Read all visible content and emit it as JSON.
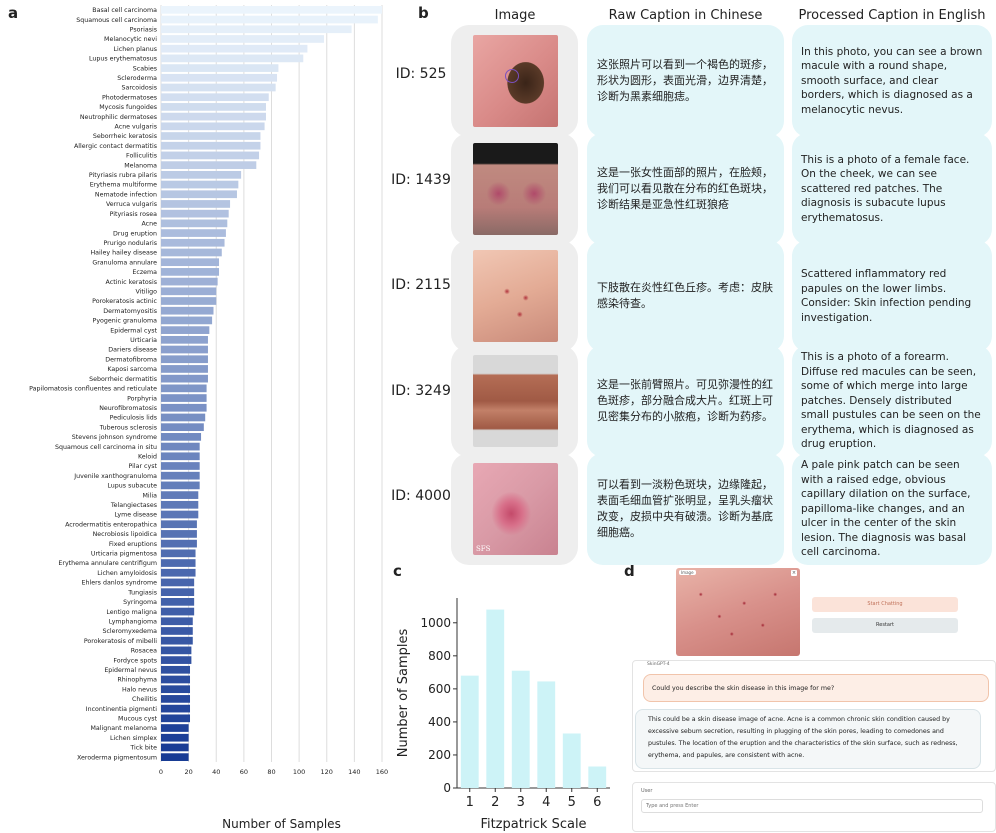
{
  "panels": {
    "a": "a",
    "b": "b",
    "c": "c",
    "d": "d"
  },
  "panel_b": {
    "headers": {
      "image": "Image",
      "raw": "Raw Caption in Chinese",
      "processed": "Processed Caption in English"
    },
    "rows": [
      {
        "id": "ID: 525",
        "cn": "这张照片可以看到一个褐色的斑疹，形状为圆形，表面光滑，边界清楚，诊断为黑素细胞痣。",
        "en": "In this photo, you can see a brown macule with a round shape, smooth surface, and clear borders, which is diagnosed as a melanocytic nevus."
      },
      {
        "id": "ID: 1439",
        "cn": "这是一张女性面部的照片，在脸颊，我们可以看见散在分布的红色斑块，诊断结果是亚急性红斑狼疮",
        "en": "This is a photo of a female face. On the cheek, we can see scattered red patches. The diagnosis is subacute lupus erythematosus."
      },
      {
        "id": "ID: 2115",
        "cn": "下肢散在炎性红色丘疹。考虑：皮肤感染待查。",
        "en": "Scattered inflammatory red papules on the lower limbs. Consider: Skin infection pending investigation."
      },
      {
        "id": "ID: 3249",
        "cn": "这是一张前臂照片。可见弥漫性的红色斑疹，部分融合成大片。红斑上可见密集分布的小脓疱，诊断为药疹。",
        "en": "This is a photo of a forearm. Diffuse red macules can be seen, some of which merge into large patches. Densely distributed small pustules can be seen on the erythema, which is diagnosed as drug eruption."
      },
      {
        "id": "ID: 4000",
        "cn": "可以看到一淡粉色斑块，边缘隆起，表面毛细血管扩张明显，呈乳头瘤状改变，皮损中央有破溃。诊断为基底细胞癌。",
        "en": "A pale pink patch can be seen with a raised edge, obvious capillary dilation on the surface, papilloma-like changes, and an ulcer in the center of the skin lesion. The diagnosis was basal cell carcinoma."
      }
    ],
    "watermark": "SFS"
  },
  "panel_d": {
    "image_label": "Image",
    "start_button": "Start Chatting",
    "restart_button": "Restart",
    "bot_name": "SkinGPT-4",
    "user_question": "Could you describe the skin disease in this image for me?",
    "bot_answer": "This could be a skin disease image of acne. Acne is a common chronic skin condition caused by excessive sebum secretion, resulting in plugging of the skin pores, leading to comedones and pustules. The location of the eruption and the characteristics of the skin surface, such as redness, erythema, and papules, are consistent with acne.",
    "user_label": "User",
    "input_placeholder": "Type and press Enter"
  },
  "chart_data": [
    {
      "type": "bar",
      "orientation": "horizontal",
      "xlabel": "Number of Samples",
      "ylabel": "",
      "xlim": [
        0,
        160
      ],
      "xticks": [
        0,
        20,
        40,
        60,
        80,
        100,
        120,
        140,
        160
      ],
      "grid": "vertical",
      "colormap": "Blues",
      "categories": [
        "Basal cell carcinoma",
        "Squamous cell carcinoma",
        "Psoriasis",
        "Melanocytic nevi",
        "Lichen planus",
        "Lupus erythematosus",
        "Scabies",
        "Scleroderma",
        "Sarcoidosis",
        "Photodermatoses",
        "Mycosis fungoides",
        "Neutrophilic dermatoses",
        "Acne vulgaris",
        "Seborrheic keratosis",
        "Allergic contact dermatitis",
        "Folliculitis",
        "Melanoma",
        "Pityriasis rubra pilaris",
        "Erythema multiforme",
        "Nematode infection",
        "Verruca vulgaris",
        "Pityriasis rosea",
        "Acne",
        "Drug eruption",
        "Prurigo nodularis",
        "Hailey hailey disease",
        "Granuloma annulare",
        "Eczema",
        "Actinic keratosis",
        "Vitiligo",
        "Porokeratosis actinic",
        "Dermatomyositis",
        "Pyogenic granuloma",
        "Epidermal cyst",
        "Urticaria",
        "Dariers disease",
        "Dermatofibroma",
        "Kaposi sarcoma",
        "Seborrheic dermatitis",
        "Papilomatosis confluentes and reticulate",
        "Porphyria",
        "Neurofibromatosis",
        "Pediculosis lids",
        "Tuberous sclerosis",
        "Stevens johnson syndrome",
        "Squamous cell carcinoma in situ",
        "Keloid",
        "Pilar cyst",
        "Juvenile xanthogranuloma",
        "Lupus subacute",
        "Milia",
        "Telangiectases",
        "Lyme disease",
        "Acrodermatitis enteropathica",
        "Necrobiosis lipoidica",
        "Fixed eruptions",
        "Urticaria pigmentosa",
        "Erythema annulare centrifigum",
        "Lichen amyloidosis",
        "Ehlers danlos syndrome",
        "Tungiasis",
        "Syringoma",
        "Lentigo maligna",
        "Lymphangioma",
        "Scleromyxedema",
        "Porokeratosis of mibelli",
        "Rosacea",
        "Fordyce spots",
        "Epidermal nevus",
        "Rhinophyma",
        "Halo nevus",
        "Cheilitis",
        "Incontinentia pigmenti",
        "Mucous cyst",
        "Malignant melanoma",
        "Lichen simplex",
        "Tick bite",
        "Xeroderma pigmentosum"
      ],
      "values": [
        160,
        157,
        138,
        118,
        106,
        103,
        85,
        84,
        83,
        78,
        76,
        76,
        75,
        72,
        72,
        71,
        69,
        58,
        56,
        55,
        50,
        49,
        48,
        47,
        46,
        44,
        42,
        42,
        41,
        40,
        40,
        38,
        37,
        35,
        34,
        34,
        34,
        34,
        34,
        33,
        33,
        33,
        32,
        31,
        29,
        28,
        28,
        28,
        28,
        28,
        27,
        27,
        27,
        26,
        26,
        26,
        25,
        25,
        25,
        24,
        24,
        24,
        24,
        23,
        23,
        23,
        22,
        22,
        21,
        21,
        21,
        21,
        21,
        21,
        20,
        20,
        20,
        20
      ]
    },
    {
      "type": "bar",
      "xlabel": "Fitzpatrick Scale",
      "ylabel": "Number of Samples",
      "categories": [
        "1",
        "2",
        "3",
        "4",
        "5",
        "6"
      ],
      "values": [
        680,
        1080,
        710,
        645,
        330,
        130
      ],
      "ylim": [
        0,
        1150
      ],
      "yticks": [
        0,
        200,
        400,
        600,
        800,
        1000
      ],
      "color": "#cdf3f7"
    }
  ]
}
